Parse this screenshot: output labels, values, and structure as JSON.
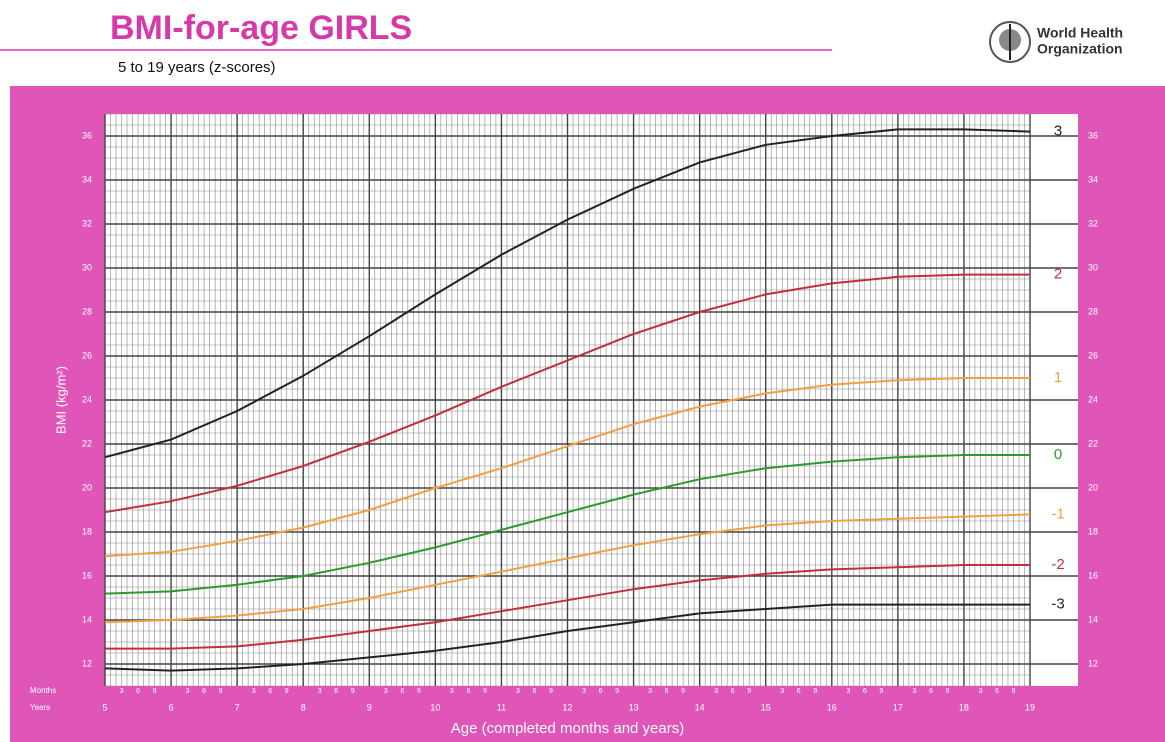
{
  "header": {
    "title": "BMI-for-age  GIRLS",
    "subtitle": "5 to 19 years (z-scores)",
    "org_line1": "World Health",
    "org_line2": "Organization"
  },
  "chart_data": {
    "type": "line",
    "x_label": "Age (completed months and years)",
    "y_label": "BMI (kg/m²)",
    "months_label": "Months",
    "years_label": "Years",
    "month_ticks": [
      "3",
      "6",
      "9"
    ],
    "x": [
      5,
      6,
      7,
      8,
      9,
      10,
      11,
      12,
      13,
      14,
      15,
      16,
      17,
      18,
      19
    ],
    "xlim": [
      5,
      19
    ],
    "xticks": [
      5,
      6,
      7,
      8,
      9,
      10,
      11,
      12,
      13,
      14,
      15,
      16,
      17,
      18,
      19
    ],
    "ylim": [
      11,
      37
    ],
    "yticks": [
      12,
      14,
      16,
      18,
      20,
      22,
      24,
      26,
      28,
      30,
      32,
      34,
      36
    ],
    "grid": true,
    "series": [
      {
        "name": "3",
        "color": "#222222",
        "values": [
          21.4,
          22.2,
          23.5,
          25.1,
          26.9,
          28.8,
          30.6,
          32.2,
          33.6,
          34.8,
          35.6,
          36.0,
          36.3,
          36.3,
          36.2
        ]
      },
      {
        "name": "2",
        "color": "#c0303a",
        "values": [
          18.9,
          19.4,
          20.1,
          21.0,
          22.1,
          23.3,
          24.6,
          25.8,
          27.0,
          28.0,
          28.8,
          29.3,
          29.6,
          29.7,
          29.7
        ]
      },
      {
        "name": "1",
        "color": "#f0a040",
        "values": [
          16.9,
          17.1,
          17.6,
          18.2,
          19.0,
          20.0,
          20.9,
          21.9,
          22.9,
          23.7,
          24.3,
          24.7,
          24.9,
          25.0,
          25.0
        ]
      },
      {
        "name": "0",
        "color": "#2e9a2e",
        "values": [
          15.2,
          15.3,
          15.6,
          16.0,
          16.6,
          17.3,
          18.1,
          18.9,
          19.7,
          20.4,
          20.9,
          21.2,
          21.4,
          21.5,
          21.5
        ]
      },
      {
        "name": "-1",
        "color": "#f0a040",
        "values": [
          13.9,
          14.0,
          14.2,
          14.5,
          15.0,
          15.6,
          16.2,
          16.8,
          17.4,
          17.9,
          18.3,
          18.5,
          18.6,
          18.7,
          18.8
        ]
      },
      {
        "name": "-2",
        "color": "#c0303a",
        "values": [
          12.7,
          12.7,
          12.8,
          13.1,
          13.5,
          13.9,
          14.4,
          14.9,
          15.4,
          15.8,
          16.1,
          16.3,
          16.4,
          16.5,
          16.5
        ]
      },
      {
        "name": "-3",
        "color": "#222222",
        "values": [
          11.8,
          11.7,
          11.8,
          12.0,
          12.3,
          12.6,
          13.0,
          13.5,
          13.9,
          14.3,
          14.5,
          14.7,
          14.7,
          14.7,
          14.7
        ]
      }
    ]
  }
}
